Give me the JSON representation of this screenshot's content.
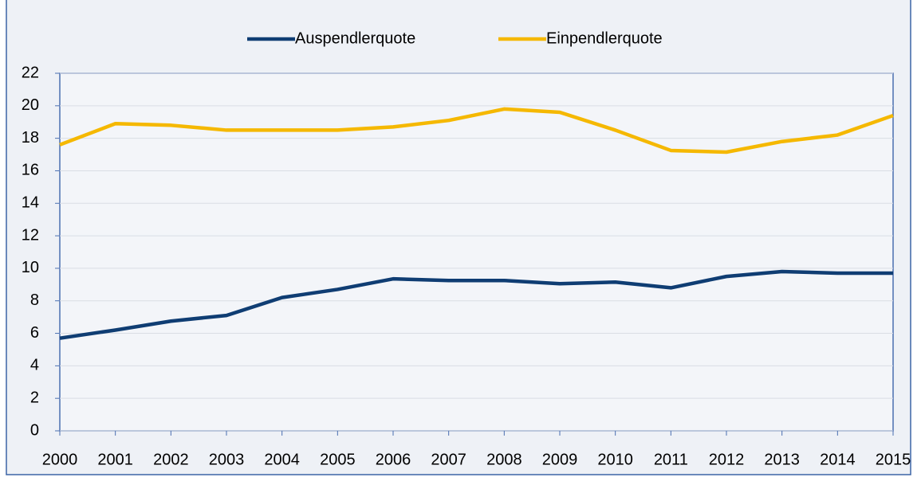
{
  "chart_data": {
    "type": "line",
    "x": [
      2000,
      2001,
      2002,
      2003,
      2004,
      2005,
      2006,
      2007,
      2008,
      2009,
      2010,
      2011,
      2012,
      2013,
      2014,
      2015
    ],
    "xlim": [
      2000,
      2015
    ],
    "xticks": [
      2000,
      2001,
      2002,
      2003,
      2004,
      2005,
      2006,
      2007,
      2008,
      2009,
      2010,
      2011,
      2012,
      2013,
      2014,
      2015
    ],
    "ylim": [
      0,
      22
    ],
    "yticks": [
      0,
      2,
      4,
      6,
      8,
      10,
      12,
      14,
      16,
      18,
      20,
      22
    ],
    "grid": true,
    "legend": "top",
    "series": [
      {
        "name": "Auspendlerquote",
        "color": "#0f3d73",
        "values": [
          5.7,
          6.2,
          6.75,
          7.1,
          8.2,
          8.7,
          9.35,
          9.25,
          9.25,
          9.05,
          9.15,
          8.8,
          9.5,
          9.8,
          9.7,
          9.7
        ]
      },
      {
        "name": "Einpendlerquote",
        "color": "#f5b800",
        "values": [
          17.6,
          18.9,
          18.8,
          18.5,
          18.5,
          18.5,
          18.7,
          19.1,
          19.8,
          19.6,
          18.5,
          17.25,
          17.15,
          17.8,
          18.2,
          19.4
        ]
      }
    ]
  }
}
